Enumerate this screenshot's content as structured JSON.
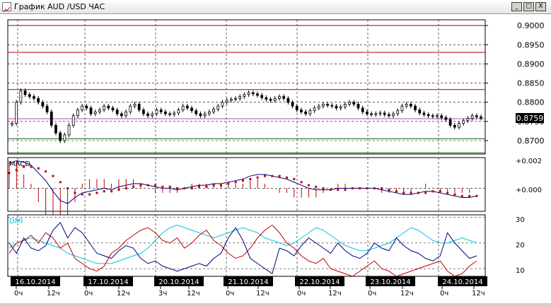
{
  "window": {
    "title": "График AUD /USD  ЧАС",
    "buttons": {
      "minimize": "_",
      "maximize": "□",
      "close": "X"
    }
  },
  "price_scale": {
    "ticks": [
      "0.9000",
      "0.8950",
      "0.8900",
      "0.8850",
      "0.8800",
      "0.8750",
      "0.8700"
    ],
    "current": "0.8759"
  },
  "macd_panel": {
    "label": "MACD",
    "ticks": [
      "+0.002",
      "+0.000"
    ]
  },
  "dmi_panel": {
    "label": "DMI",
    "ticks": [
      "30",
      "20",
      "10"
    ]
  },
  "time_axis": {
    "dates": [
      "16.10.2014",
      "17.10.2014",
      "20.10.2014",
      "21.10.2014",
      "22.10.2014",
      "23.10.2014",
      "24.10.2014"
    ],
    "hours": [
      "0ч",
      "12ч",
      "0ч",
      "12ч",
      "3ч",
      "12ч",
      "0ч",
      "12ч",
      "0ч",
      "12ч",
      "0ч",
      "12ч",
      "0ч",
      "12ч"
    ]
  },
  "colors": {
    "background": "#ffffff",
    "candle": "#000000",
    "resistance_line": "#b00000",
    "support_line": "#006000",
    "macd_line": "#000080",
    "macd_signal": "#c00000",
    "dmi_plus": "#000080",
    "dmi_minus": "#c00000",
    "adx": "#00c8e0",
    "price_label_bg": "#000000"
  },
  "chart_data": [
    {
      "type": "candlestick",
      "ylim": [
        0.8665,
        0.9015
      ],
      "horizontal_lines": [
        {
          "value": 0.9,
          "color": "red"
        },
        {
          "value": 0.893,
          "color": "red"
        },
        {
          "value": 0.8833,
          "color": "red"
        },
        {
          "value": 0.8757,
          "color": "magenta"
        },
        {
          "value": 0.8705,
          "color": "green"
        },
        {
          "value": 0.8668,
          "color": "green"
        }
      ],
      "current_price": 0.8759,
      "close_series": [
        0.8745,
        0.88,
        0.883,
        0.882,
        0.8815,
        0.881,
        0.88,
        0.879,
        0.8775,
        0.874,
        0.872,
        0.87,
        0.8715,
        0.874,
        0.8765,
        0.878,
        0.879,
        0.8785,
        0.877,
        0.8775,
        0.878,
        0.879,
        0.8785,
        0.878,
        0.877,
        0.8765,
        0.8775,
        0.879,
        0.8795,
        0.878,
        0.877,
        0.8765,
        0.877,
        0.878,
        0.8775,
        0.877,
        0.8768,
        0.8772,
        0.878,
        0.879,
        0.8785,
        0.8778,
        0.877,
        0.8765,
        0.877,
        0.8775,
        0.8782,
        0.879,
        0.88,
        0.8805,
        0.8808,
        0.881,
        0.8815,
        0.882,
        0.8825,
        0.8822,
        0.8818,
        0.8812,
        0.8808,
        0.8805,
        0.881,
        0.8815,
        0.881,
        0.88,
        0.879,
        0.878,
        0.8775,
        0.877,
        0.8778,
        0.8785,
        0.879,
        0.8795,
        0.8792,
        0.879,
        0.8785,
        0.8788,
        0.8795,
        0.88,
        0.8795,
        0.8785,
        0.8775,
        0.877,
        0.8768,
        0.877,
        0.8772,
        0.8768,
        0.8765,
        0.877,
        0.8778,
        0.879,
        0.8795,
        0.879,
        0.878,
        0.8772,
        0.8768,
        0.8765,
        0.8763,
        0.8765,
        0.876,
        0.8755,
        0.874,
        0.8735,
        0.8745,
        0.8752,
        0.8758,
        0.8765,
        0.8762,
        0.8759
      ]
    },
    {
      "type": "line",
      "name": "MACD",
      "ylim": [
        -0.0015,
        0.002
      ],
      "macd": [
        0.0016,
        0.0018,
        0.0017,
        0.0015,
        0.001,
        0.0005,
        -0.0002,
        -0.0008,
        -0.001,
        -0.0006,
        -0.0003,
        -0.0002,
        -0.0001,
        0.0,
        -0.0001,
        0.0001,
        0.0002,
        0.0003,
        0.0003,
        0.0002,
        0.0001,
        0.0,
        0.0,
        -0.0001,
        0.0,
        0.0001,
        0.0002,
        0.0002,
        0.0003,
        0.0003,
        0.0004,
        0.0005,
        0.0006,
        0.0008,
        0.0009,
        0.0009,
        0.0008,
        0.0007,
        0.0006,
        0.0004,
        0.0002,
        0.0,
        -0.0001,
        -0.0001,
        -0.0001,
        0.0,
        0.0,
        0.0,
        0.0,
        0.0,
        0.0,
        -0.0001,
        -0.0002,
        -0.0003,
        -0.0004,
        -0.0004,
        -0.0003,
        -0.0002,
        -0.0002,
        -0.0003,
        -0.0004,
        -0.0005,
        -0.0006,
        -0.0006,
        -0.0005
      ],
      "signal": [
        0.001,
        0.0012,
        0.0014,
        0.0014,
        0.0013,
        0.0011,
        0.0008,
        0.0004,
        0.0,
        -0.0003,
        -0.0004,
        -0.0004,
        -0.0003,
        -0.0002,
        -0.0002,
        -0.0001,
        0.0,
        0.0001,
        0.0002,
        0.0002,
        0.0002,
        0.0001,
        0.0001,
        0.0,
        0.0,
        0.0,
        0.0001,
        0.0001,
        0.0002,
        0.0002,
        0.0003,
        0.0004,
        0.0005,
        0.0006,
        0.0007,
        0.0008,
        0.0008,
        0.0008,
        0.0007,
        0.0006,
        0.0004,
        0.0002,
        0.0001,
        0.0,
        -0.0001,
        -0.0001,
        -0.0001,
        0.0,
        0.0,
        0.0,
        0.0,
        0.0,
        -0.0001,
        -0.0002,
        -0.0003,
        -0.0003,
        -0.0003,
        -0.0003,
        -0.0002,
        -0.0002,
        -0.0003,
        -0.0004,
        -0.0005,
        -0.0005,
        -0.0005
      ]
    },
    {
      "type": "line",
      "name": "DMI",
      "ylim": [
        7,
        31
      ],
      "plus_di": [
        20,
        16,
        22,
        18,
        17,
        19,
        25,
        28,
        22,
        26,
        24,
        20,
        16,
        15,
        14,
        17,
        19,
        18,
        14,
        12,
        13,
        11,
        10,
        9,
        10,
        11,
        12,
        11,
        14,
        16,
        22,
        26,
        21,
        14,
        12,
        10,
        8,
        18,
        17,
        15,
        19,
        22,
        20,
        18,
        16,
        20,
        17,
        15,
        14,
        16,
        20,
        18,
        17,
        22,
        19,
        17,
        16,
        14,
        13,
        15,
        24,
        20,
        17,
        14,
        15
      ],
      "minus_di": [
        16,
        20,
        21,
        23,
        20,
        24,
        22,
        18,
        20,
        14,
        12,
        10,
        9,
        11,
        16,
        18,
        21,
        23,
        25,
        26,
        24,
        21,
        20,
        22,
        18,
        20,
        23,
        25,
        21,
        19,
        16,
        14,
        15,
        18,
        22,
        25,
        27,
        24,
        20,
        18,
        15,
        13,
        12,
        14,
        10,
        9,
        8,
        7,
        9,
        11,
        13,
        10,
        9,
        7,
        8,
        9,
        10,
        11,
        12,
        13,
        9,
        7,
        8,
        11,
        13
      ],
      "adx": [
        18,
        20,
        21,
        22,
        21,
        20,
        19,
        18,
        16,
        15,
        14,
        13,
        12,
        12,
        12,
        13,
        14,
        15,
        16,
        18,
        21,
        24,
        26,
        27,
        26,
        25,
        24,
        23,
        22,
        23,
        24,
        25,
        26,
        25,
        24,
        22,
        21,
        20,
        19,
        20,
        22,
        24,
        26,
        25,
        23,
        21,
        19,
        18,
        17,
        17,
        18,
        19,
        20,
        22,
        24,
        26,
        25,
        23,
        21,
        20,
        20,
        21,
        22,
        21,
        20
      ]
    }
  ]
}
